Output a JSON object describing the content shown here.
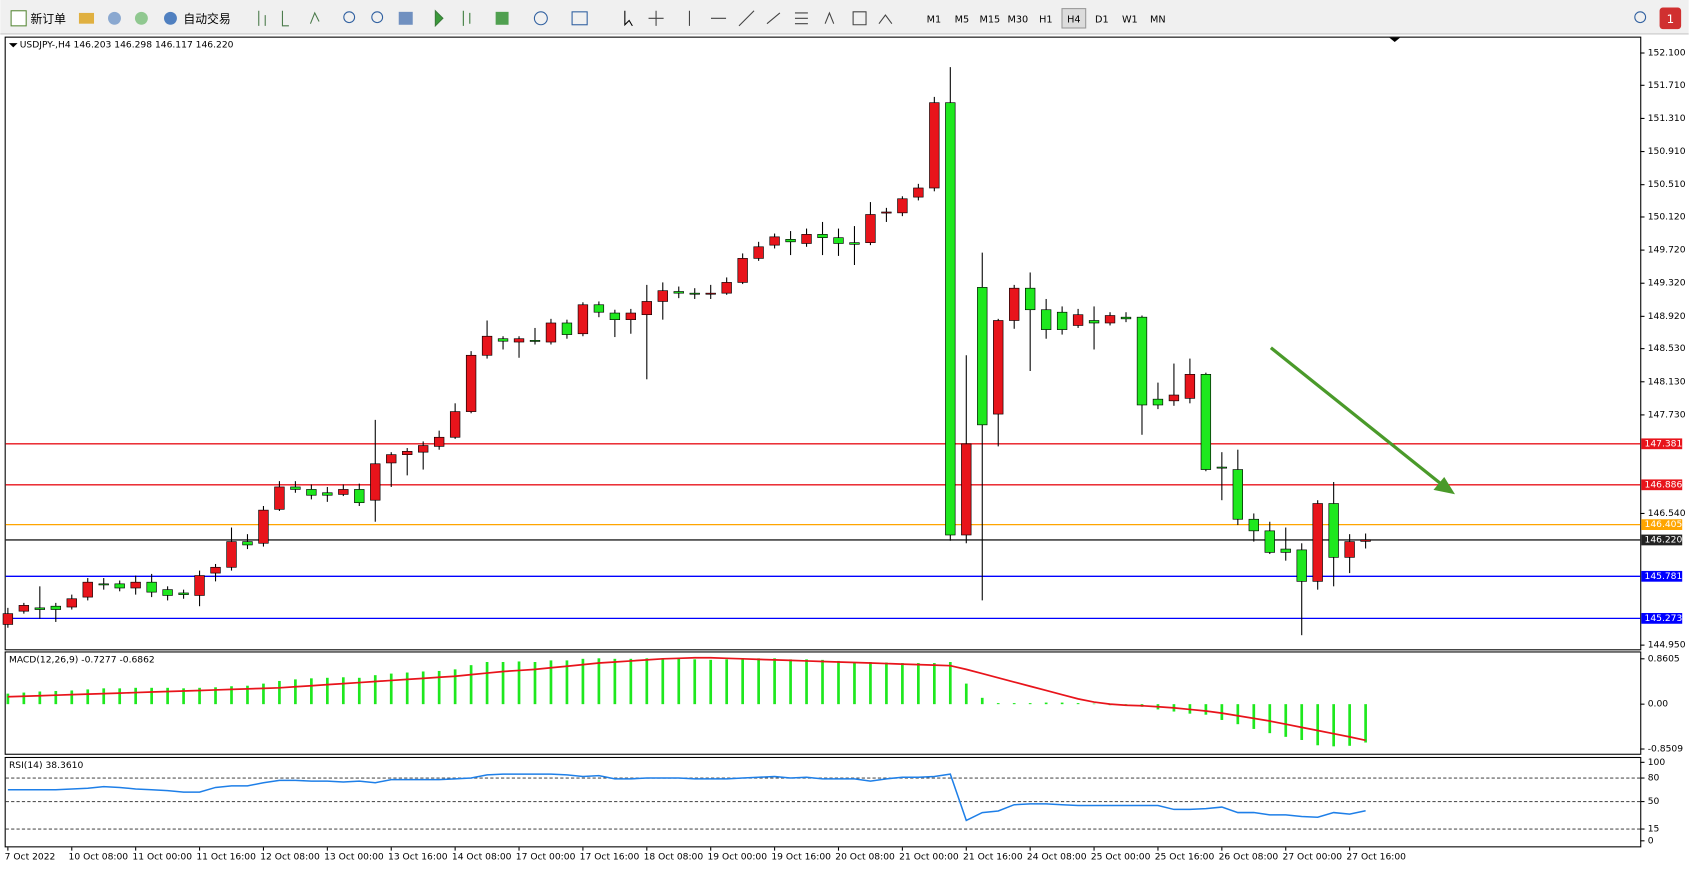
{
  "toolbar": {
    "new_order": "新订单",
    "auto_trading": "自动交易",
    "timeframes": [
      "M1",
      "M5",
      "M15",
      "M30",
      "H1",
      "H4",
      "D1",
      "W1",
      "MN"
    ],
    "active_timeframe": "H4",
    "notifications": "1"
  },
  "chart_data": [
    {
      "type": "candlestick",
      "title": "USDJPY-,H4  146.203 146.298 146.117 146.220",
      "x": [
        "7 Oct 2022",
        null,
        null,
        null,
        "10 Oct 08:00",
        null,
        null,
        null,
        "11 Oct 00:00",
        null,
        null,
        null,
        "11 Oct 16:00",
        null,
        null,
        null,
        "12 Oct 08:00",
        null,
        null,
        null,
        "13 Oct 00:00",
        null,
        null,
        null,
        "13 Oct 16:00",
        null,
        null,
        null,
        "14 Oct 08:00",
        null,
        null,
        null,
        "17 Oct 00:00",
        null,
        null,
        null,
        "17 Oct 16:00",
        null,
        null,
        null,
        "18 Oct 08:00",
        null,
        null,
        null,
        "19 Oct 00:00",
        null,
        null,
        null,
        "19 Oct 16:00",
        null,
        null,
        null,
        "20 Oct 08:00",
        null,
        null,
        null,
        "21 Oct 00:00",
        null,
        null,
        null,
        "21 Oct 16:00",
        null,
        null,
        null,
        "24 Oct 08:00",
        null,
        null,
        null,
        "25 Oct 00:00",
        null,
        null,
        null,
        "25 Oct 16:00",
        null,
        null,
        null,
        "26 Oct 08:00",
        null,
        null,
        null,
        "27 Oct 00:00",
        null,
        null,
        null,
        "27 Oct 16:00",
        null
      ],
      "open": [
        145.2,
        145.36,
        145.4,
        145.42,
        145.41,
        145.53,
        145.69,
        145.69,
        145.64,
        145.71,
        145.62,
        145.58,
        145.55,
        145.82,
        145.89,
        146.2,
        146.18,
        146.59,
        146.86,
        146.83,
        146.79,
        146.77,
        146.83,
        146.7,
        147.15,
        147.25,
        147.28,
        147.35,
        147.46,
        147.77,
        148.45,
        148.65,
        148.61,
        148.63,
        148.61,
        148.84,
        148.71,
        149.06,
        148.96,
        148.88,
        148.94,
        149.1,
        149.22,
        149.2,
        149.19,
        149.2,
        149.33,
        149.62,
        149.78,
        149.85,
        149.8,
        149.91,
        149.87,
        149.81,
        149.81,
        150.17,
        150.17,
        150.36,
        150.47,
        151.5,
        146.28,
        149.27,
        147.74,
        148.87,
        149.26,
        149.0,
        148.97,
        148.81,
        148.87,
        148.84,
        148.91,
        148.91,
        147.92,
        147.9,
        147.93,
        148.22,
        147.1,
        147.07,
        146.47,
        146.33,
        146.11,
        146.1,
        145.72,
        146.66,
        146.01,
        146.203
      ],
      "high": [
        145.4,
        145.46,
        145.66,
        145.46,
        145.56,
        145.76,
        145.76,
        145.73,
        145.79,
        145.81,
        145.66,
        145.62,
        145.85,
        145.93,
        146.37,
        146.29,
        146.63,
        146.93,
        146.93,
        146.89,
        146.86,
        146.89,
        146.9,
        147.67,
        147.28,
        147.33,
        147.41,
        147.54,
        147.87,
        148.5,
        148.87,
        148.68,
        148.68,
        148.78,
        148.89,
        148.88,
        149.09,
        149.1,
        149.0,
        149.01,
        149.3,
        149.33,
        149.28,
        149.26,
        149.3,
        149.39,
        149.68,
        149.82,
        149.92,
        149.95,
        149.98,
        150.06,
        149.98,
        150.01,
        150.3,
        150.23,
        150.37,
        150.52,
        151.57,
        151.93,
        148.45,
        149.69,
        148.89,
        149.3,
        149.45,
        149.13,
        149.04,
        149.01,
        149.04,
        148.97,
        148.97,
        148.93,
        148.12,
        148.35,
        148.41,
        148.24,
        147.28,
        147.31,
        146.54,
        146.44,
        146.37,
        146.18,
        146.7,
        146.92,
        146.29,
        146.298
      ],
      "low": [
        145.16,
        145.33,
        145.27,
        145.23,
        145.38,
        145.49,
        145.62,
        145.6,
        145.56,
        145.53,
        145.49,
        145.51,
        145.42,
        145.72,
        145.85,
        146.11,
        146.14,
        146.57,
        146.79,
        146.71,
        146.68,
        146.75,
        146.63,
        146.44,
        146.86,
        147.0,
        147.07,
        147.31,
        147.44,
        147.75,
        148.41,
        148.52,
        148.42,
        148.58,
        148.58,
        148.65,
        148.68,
        148.91,
        148.67,
        148.71,
        148.16,
        148.88,
        149.14,
        149.13,
        149.13,
        149.18,
        149.31,
        149.59,
        149.74,
        149.66,
        149.76,
        149.66,
        149.65,
        149.54,
        149.78,
        150.06,
        150.13,
        150.32,
        150.43,
        146.21,
        146.18,
        145.49,
        147.35,
        148.77,
        148.26,
        148.65,
        148.7,
        148.78,
        148.52,
        148.81,
        148.85,
        147.49,
        147.8,
        147.84,
        147.87,
        147.05,
        146.7,
        146.4,
        146.2,
        146.05,
        145.97,
        145.07,
        145.62,
        145.66,
        145.82,
        146.117
      ],
      "close": [
        145.33,
        145.43,
        145.38,
        145.38,
        145.51,
        145.71,
        145.68,
        145.64,
        145.71,
        145.59,
        145.55,
        145.56,
        145.79,
        145.89,
        146.2,
        146.16,
        146.58,
        146.86,
        146.83,
        146.76,
        146.76,
        146.83,
        146.67,
        147.14,
        147.25,
        147.29,
        147.36,
        147.46,
        147.77,
        148.45,
        148.68,
        148.62,
        148.65,
        148.62,
        148.84,
        148.7,
        149.06,
        148.97,
        148.88,
        148.96,
        149.1,
        149.23,
        149.2,
        149.19,
        149.2,
        149.33,
        149.62,
        149.76,
        149.88,
        149.82,
        149.91,
        149.87,
        149.8,
        149.79,
        150.15,
        150.18,
        150.34,
        150.47,
        151.5,
        146.28,
        147.38,
        147.61,
        148.87,
        149.26,
        149.0,
        148.76,
        148.76,
        148.94,
        148.84,
        148.93,
        148.89,
        147.85,
        147.85,
        147.97,
        148.22,
        147.07,
        147.09,
        146.47,
        146.33,
        146.07,
        146.07,
        145.72,
        146.66,
        146.01,
        146.2,
        146.22
      ],
      "up_color": "#e8141b",
      "down_color": "#1ee81e",
      "ylim": [
        144.9,
        152.285
      ],
      "yticks": [
        {
          "value": 152.1,
          "label": "152.100"
        },
        {
          "value": 151.71,
          "label": "151.710"
        },
        {
          "value": 151.31,
          "label": "151.310"
        },
        {
          "value": 150.91,
          "label": "150.910"
        },
        {
          "value": 150.51,
          "label": "150.510"
        },
        {
          "value": 150.12,
          "label": "150.120"
        },
        {
          "value": 149.72,
          "label": "149.720"
        },
        {
          "value": 149.32,
          "label": "149.320"
        },
        {
          "value": 148.92,
          "label": "148.920"
        },
        {
          "value": 148.53,
          "label": "148.530"
        },
        {
          "value": 148.13,
          "label": "148.130"
        },
        {
          "value": 147.73,
          "label": "147.730"
        },
        {
          "value": 146.54,
          "label": "146.540"
        },
        {
          "value": 144.95,
          "label": "144.950"
        }
      ],
      "hlines": [
        {
          "value": 147.381,
          "color": "#e8141b"
        },
        {
          "value": 146.886,
          "color": "#e8141b"
        },
        {
          "value": 146.405,
          "color": "#ffa500"
        },
        {
          "value": 146.22,
          "label": "146.220",
          "color": "#222222"
        },
        {
          "value": 145.781,
          "color": "#0000ff"
        },
        {
          "value": 145.273,
          "color": "#0000ff"
        }
      ]
    },
    {
      "type": "macd",
      "label": "MACD(12,26,9) -0.7277 -0.6862",
      "values": [
        0.2,
        0.22,
        0.24,
        0.25,
        0.26,
        0.28,
        0.3,
        0.3,
        0.31,
        0.31,
        0.31,
        0.3,
        0.31,
        0.32,
        0.34,
        0.35,
        0.39,
        0.44,
        0.47,
        0.49,
        0.5,
        0.51,
        0.5,
        0.55,
        0.58,
        0.6,
        0.62,
        0.63,
        0.66,
        0.74,
        0.8,
        0.8,
        0.81,
        0.8,
        0.83,
        0.83,
        0.86,
        0.87,
        0.86,
        0.86,
        0.87,
        0.87,
        0.86,
        0.85,
        0.84,
        0.85,
        0.87,
        0.87,
        0.87,
        0.85,
        0.85,
        0.84,
        0.82,
        0.8,
        0.8,
        0.79,
        0.78,
        0.78,
        0.78,
        0.8,
        0.39,
        0.12,
        0.02,
        0.02,
        0.02,
        0.03,
        0.03,
        0.02,
        0.01,
        -0.02,
        -0.03,
        -0.05,
        -0.1,
        -0.14,
        -0.18,
        -0.2,
        -0.3,
        -0.38,
        -0.47,
        -0.55,
        -0.62,
        -0.68,
        -0.78,
        -0.8,
        -0.79,
        -0.7277
      ],
      "signal": [
        0.14,
        0.15,
        0.16,
        0.17,
        0.18,
        0.19,
        0.2,
        0.21,
        0.22,
        0.23,
        0.24,
        0.25,
        0.26,
        0.27,
        0.28,
        0.29,
        0.3,
        0.31,
        0.33,
        0.35,
        0.37,
        0.39,
        0.41,
        0.43,
        0.45,
        0.47,
        0.49,
        0.51,
        0.53,
        0.56,
        0.59,
        0.62,
        0.64,
        0.66,
        0.69,
        0.72,
        0.75,
        0.78,
        0.8,
        0.82,
        0.84,
        0.86,
        0.87,
        0.88,
        0.88,
        0.87,
        0.86,
        0.85,
        0.84,
        0.83,
        0.82,
        0.81,
        0.8,
        0.79,
        0.78,
        0.77,
        0.76,
        0.75,
        0.74,
        0.73,
        0.66,
        0.58,
        0.5,
        0.42,
        0.34,
        0.26,
        0.18,
        0.1,
        0.04,
        0.0,
        -0.02,
        -0.03,
        -0.05,
        -0.07,
        -0.1,
        -0.13,
        -0.17,
        -0.22,
        -0.27,
        -0.32,
        -0.38,
        -0.44,
        -0.5,
        -0.56,
        -0.62,
        -0.6862
      ],
      "bar_color": "#1ee81e",
      "line_color": "#e8141b",
      "ylim": [
        -0.94,
        0.98
      ],
      "yticks": [
        0.8605,
        {
          "value": 0,
          "label": "0.00"
        },
        -0.8509
      ]
    },
    {
      "type": "line",
      "label": "RSI(14) 38.3610",
      "values": [
        65,
        65,
        65,
        65,
        66,
        67,
        69,
        68,
        66,
        65,
        64,
        62,
        62,
        68,
        70,
        70,
        74,
        77,
        77,
        76,
        76,
        75,
        76,
        74,
        78,
        78,
        78,
        78,
        79,
        80,
        84,
        85,
        85,
        85,
        85,
        84,
        82,
        83,
        79,
        79,
        80,
        80,
        80,
        79,
        79,
        79,
        80,
        81,
        82,
        80,
        81,
        79,
        79,
        79,
        76,
        79,
        81,
        81,
        82,
        85,
        26,
        36,
        38,
        46,
        47,
        47,
        46,
        45,
        45,
        45,
        45,
        45,
        45,
        40,
        40,
        41,
        43,
        36,
        36,
        33,
        33,
        31,
        30,
        36,
        34,
        38.361
      ],
      "color": "#1e7fe8",
      "ylim": [
        -7,
        105.5
      ],
      "yticks": [
        100,
        80,
        50,
        15,
        0
      ],
      "levels": [
        80,
        50,
        15
      ]
    }
  ]
}
